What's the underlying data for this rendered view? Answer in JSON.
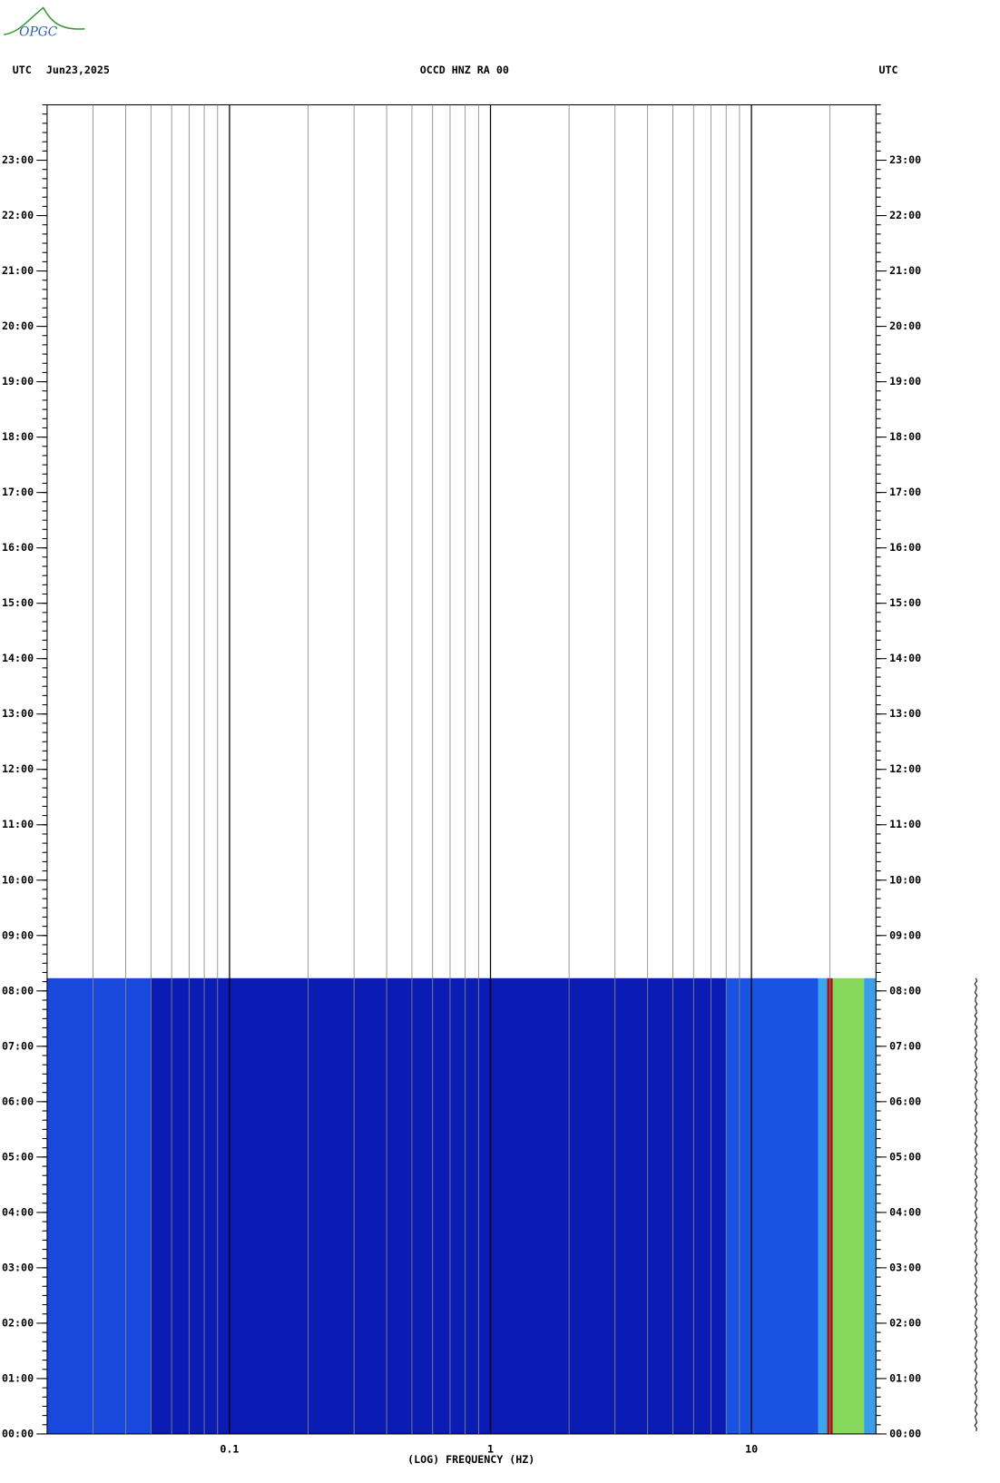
{
  "logo": "OPGC",
  "chart_data": {
    "type": "spectrogram",
    "header_left": "UTC",
    "date": "Jun23,2025",
    "title": "OCCD HNZ RA 00",
    "header_right": "UTC",
    "xlabel": "(LOG) FREQUENCY (HZ)",
    "xscale": "log",
    "xlim": [
      0.02,
      30
    ],
    "xticks": [
      0.1,
      1,
      10
    ],
    "x_minor_grid": [
      0.03,
      0.04,
      0.05,
      0.06,
      0.07,
      0.08,
      0.09,
      0.2,
      0.3,
      0.4,
      0.5,
      0.6,
      0.7,
      0.8,
      0.9,
      2,
      3,
      4,
      5,
      6,
      7,
      8,
      9,
      20
    ],
    "ylim": [
      0,
      24
    ],
    "yticks": [
      {
        "value": 0,
        "label": "00:00"
      },
      {
        "value": 1,
        "label": "01:00"
      },
      {
        "value": 2,
        "label": "02:00"
      },
      {
        "value": 3,
        "label": "03:00"
      },
      {
        "value": 4,
        "label": "04:00"
      },
      {
        "value": 5,
        "label": "05:00"
      },
      {
        "value": 6,
        "label": "06:00"
      },
      {
        "value": 7,
        "label": "07:00"
      },
      {
        "value": 8,
        "label": "08:00"
      },
      {
        "value": 9,
        "label": "09:00"
      },
      {
        "value": 10,
        "label": "10:00"
      },
      {
        "value": 11,
        "label": "11:00"
      },
      {
        "value": 12,
        "label": "12:00"
      },
      {
        "value": 13,
        "label": "13:00"
      },
      {
        "value": 14,
        "label": "14:00"
      },
      {
        "value": 15,
        "label": "15:00"
      },
      {
        "value": 16,
        "label": "16:00"
      },
      {
        "value": 17,
        "label": "17:00"
      },
      {
        "value": 18,
        "label": "18:00"
      },
      {
        "value": 19,
        "label": "19:00"
      },
      {
        "value": 20,
        "label": "20:00"
      },
      {
        "value": 21,
        "label": "21:00"
      },
      {
        "value": 22,
        "label": "22:00"
      },
      {
        "value": 23,
        "label": "23:00"
      }
    ],
    "data_end": 8.23,
    "bands": [
      {
        "from": 0.02,
        "to": 0.05,
        "color": "#1848dc"
      },
      {
        "from": 0.05,
        "to": 8,
        "color": "#0a1cb4"
      },
      {
        "from": 8,
        "to": 18,
        "color": "#1a52e2"
      },
      {
        "from": 18,
        "to": 19.5,
        "color": "#3aa6ee"
      },
      {
        "from": 19.5,
        "to": 20.5,
        "color": "#a81410"
      },
      {
        "from": 20.5,
        "to": 27,
        "color": "#86d85a"
      },
      {
        "from": 27,
        "to": 30,
        "color": "#3c9ee4"
      }
    ],
    "grid": true
  }
}
